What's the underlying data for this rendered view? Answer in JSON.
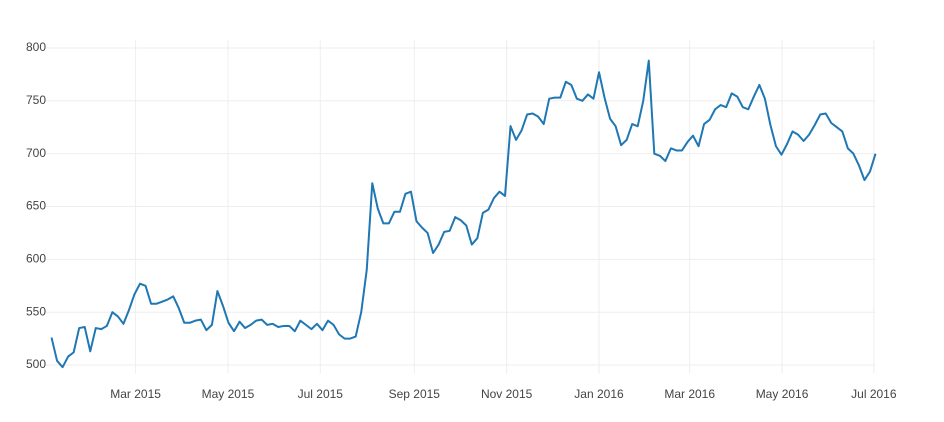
{
  "chart_data": {
    "type": "line",
    "x": [
      2015.01,
      2015.02,
      2015.03,
      2015.04,
      2015.05,
      2015.06,
      2015.07,
      2015.08,
      2015.09,
      2015.1,
      2015.11,
      2015.12,
      2015.13,
      2015.14,
      2015.15,
      2015.16,
      2015.17,
      2015.18,
      2015.19,
      2015.2,
      2015.21,
      2015.22,
      2015.23,
      2015.24,
      2015.25,
      2015.26,
      2015.27,
      2015.28,
      2015.29,
      2015.3,
      2015.31,
      2015.32,
      2015.33,
      2015.34,
      2015.35,
      2015.36,
      2015.37,
      2015.38,
      2015.39,
      2015.4,
      2015.41,
      2015.42,
      2015.43,
      2015.44,
      2015.45,
      2015.46,
      2015.47,
      2015.48,
      2015.49,
      2015.5,
      2015.51,
      2015.52,
      2015.53,
      2015.54,
      2015.55,
      2015.56,
      2015.57,
      2015.58,
      2015.59,
      2015.6,
      2015.61,
      2015.62,
      2015.63,
      2015.64,
      2015.65,
      2015.66,
      2015.67,
      2015.68,
      2015.69,
      2015.7,
      2015.71,
      2015.72,
      2015.73,
      2015.74,
      2015.75,
      2015.76,
      2015.77,
      2015.78,
      2015.79,
      2015.8,
      2015.81,
      2015.82,
      2015.83,
      2015.84,
      2015.85,
      2015.86,
      2015.87,
      2015.88,
      2015.89,
      2015.9,
      2015.91,
      2015.92,
      2015.93,
      2015.94,
      2015.95,
      2015.96,
      2015.97,
      2015.98,
      2015.99,
      2016.0,
      2016.01,
      2016.02,
      2016.03,
      2016.04,
      2016.05,
      2016.06,
      2016.07,
      2016.08,
      2016.09,
      2016.1,
      2016.11,
      2016.12,
      2016.13,
      2016.14,
      2016.15,
      2016.16,
      2016.17,
      2016.18,
      2016.19,
      2016.2,
      2016.21,
      2016.22,
      2016.23,
      2016.24,
      2016.25,
      2016.26,
      2016.27,
      2016.28,
      2016.29,
      2016.3,
      2016.31,
      2016.32,
      2016.33,
      2016.34,
      2016.35,
      2016.36,
      2016.37,
      2016.38,
      2016.39,
      2016.4,
      2016.41,
      2016.42,
      2016.43,
      2016.44,
      2016.45,
      2016.46,
      2016.47,
      2016.48,
      2016.49,
      2016.5
    ],
    "series": [
      {
        "color": "#1f77b4",
        "values": [
          526,
          504,
          498,
          508,
          512,
          535,
          536,
          513,
          535,
          534,
          537,
          550,
          546,
          539,
          552,
          567,
          577,
          575,
          558,
          558,
          560,
          562,
          565,
          554,
          540,
          540,
          542,
          543,
          533,
          538,
          570,
          556,
          540,
          532,
          541,
          535,
          538,
          542,
          543,
          538,
          539,
          536,
          537,
          537,
          532,
          542,
          538,
          534,
          539,
          533,
          542,
          538,
          529,
          525,
          525,
          527,
          550,
          590,
          672,
          648,
          634,
          634,
          645,
          645,
          662,
          664,
          636,
          630,
          625,
          606,
          614,
          626,
          627,
          640,
          637,
          632,
          614,
          620,
          644,
          647,
          658,
          664,
          660,
          726,
          713,
          722,
          737,
          738,
          735,
          728,
          752,
          753,
          753,
          768,
          765,
          752,
          750,
          756,
          752,
          777,
          753,
          733,
          726,
          708,
          713,
          728,
          726,
          750,
          788,
          700,
          698,
          693,
          705,
          703,
          703,
          711,
          717,
          707,
          728,
          732,
          742,
          746,
          744,
          757,
          754,
          744,
          742,
          754,
          765,
          752,
          727,
          707,
          699,
          709,
          721,
          718,
          712,
          718,
          727,
          737,
          738,
          729,
          725,
          721,
          705,
          700,
          689,
          675,
          683,
          700
        ]
      }
    ],
    "xlim": [
      2015.0,
      2016.5
    ],
    "xticks": [
      {
        "value": 2015.162,
        "label": "Mar 2015"
      },
      {
        "value": 2015.329,
        "label": "May 2015"
      },
      {
        "value": 2015.496,
        "label": "Jul 2015"
      },
      {
        "value": 2015.666,
        "label": "Sep 2015"
      },
      {
        "value": 2015.833,
        "label": "Nov 2015"
      },
      {
        "value": 2016.0,
        "label": "Jan 2016"
      },
      {
        "value": 2016.164,
        "label": "Mar 2016"
      },
      {
        "value": 2016.331,
        "label": "May 2016"
      },
      {
        "value": 2016.497,
        "label": "Jul 2016"
      }
    ],
    "ylim": [
      492,
      808
    ],
    "yticks": [
      500,
      550,
      600,
      650,
      700,
      750,
      800
    ],
    "grid": true
  }
}
